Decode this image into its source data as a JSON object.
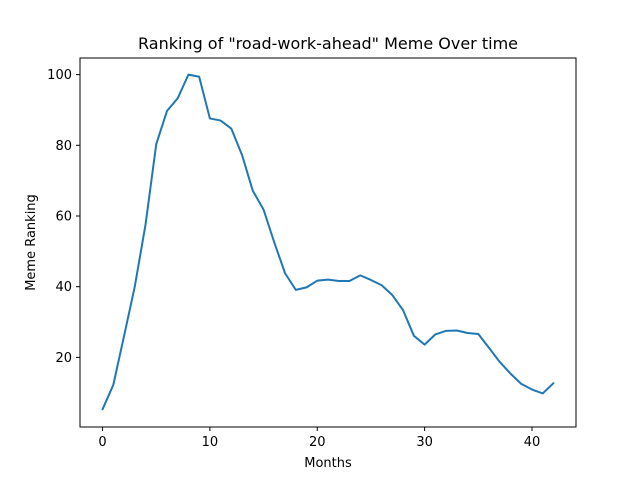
{
  "chart_data": {
    "type": "line",
    "title": "Ranking of \"road-work-ahead\" Meme Over time",
    "xlabel": "Months",
    "ylabel": "Meme Ranking",
    "xlim": [
      -2.1,
      44.1
    ],
    "ylim": [
      0.3,
      104.7
    ],
    "xticks": [
      0,
      10,
      20,
      30,
      40
    ],
    "yticks": [
      20,
      40,
      60,
      80,
      100
    ],
    "grid": false,
    "series": [
      {
        "color": "#1f77b4",
        "x": [
          0,
          1,
          2,
          3,
          4,
          5,
          6,
          7,
          8,
          9,
          10,
          11,
          12,
          13,
          14,
          15,
          16,
          17,
          18,
          19,
          20,
          21,
          22,
          23,
          24,
          25,
          26,
          27,
          28,
          29,
          30,
          31,
          32,
          33,
          34,
          35,
          36,
          37,
          38,
          39,
          40,
          41,
          42
        ],
        "y": [
          5.3,
          12.2,
          26,
          40,
          57.5,
          80.3,
          89.7,
          93.3,
          100,
          99.4,
          87.6,
          87,
          84.7,
          77.2,
          67.1,
          61.8,
          52.5,
          43.8,
          39.1,
          39.8,
          41.7,
          42,
          41.6,
          41.6,
          43.2,
          41.9,
          40.4,
          37.6,
          33.3,
          26.1,
          23.6,
          26.5,
          27.5,
          27.6,
          26.9,
          26.6,
          22.7,
          18.7,
          15.4,
          12.5,
          10.9,
          9.8,
          12.7
        ]
      }
    ]
  }
}
